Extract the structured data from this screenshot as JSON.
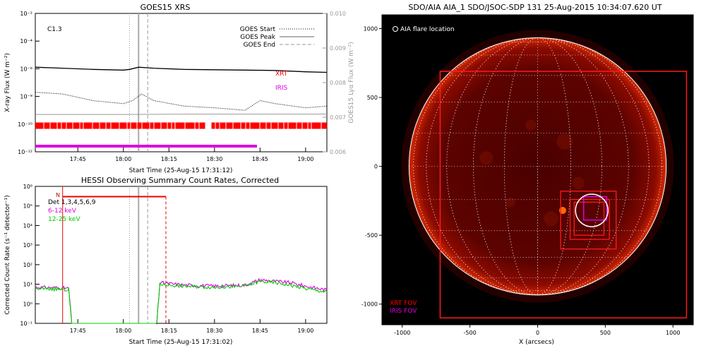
{
  "panels": {
    "goes": {
      "title": "GOES15 XRS",
      "class_label": "C1.3",
      "xlabel": "Start Time (25-Aug-15 17:31:12)",
      "ylabel": "X-ray Flux (W m⁻²)",
      "y2label": "GOES15 Lyα Flux (W m⁻²)",
      "yticks": [
        "10⁻²",
        "10⁻⁴",
        "10⁻⁶",
        "10⁻⁸",
        "10⁻¹⁰",
        "10⁻¹²"
      ],
      "y2ticks": [
        "0.010",
        "0.009",
        "0.008",
        "0.007",
        "0.006"
      ],
      "xticks": [
        "17:45",
        "18:00",
        "18:15",
        "18:30",
        "18:45",
        "19:00"
      ],
      "legend": [
        "GOES Start",
        "GOES Peak",
        "GOES End"
      ],
      "bar_labels": {
        "xrt": "XRT",
        "iris": "IRIS"
      }
    },
    "hessi": {
      "title": "HESSI Observing Summary Count Rates, Corrected",
      "xlabel": "Start Time (25-Aug-15 17:31:02)",
      "ylabel": "Corrected Count Rate (s⁻¹ detector⁻¹)",
      "yticks": [
        "10⁶",
        "10⁵",
        "10⁴",
        "10³",
        "10²",
        "10¹",
        "10⁰",
        "10⁻¹"
      ],
      "xticks": [
        "17:45",
        "18:00",
        "18:15",
        "18:30",
        "18:45",
        "19:00"
      ],
      "flag_label": "N",
      "legend": {
        "det": "Det 1,3,4,5,6,9",
        "low": "6-12 keV",
        "high": "12-25 keV"
      }
    },
    "aia": {
      "title": "SDO/AIA AIA_1 SDO/JSOC-SDP 131 25-Aug-2015 10:34:07.620 UT",
      "flare_label": "AIA flare location",
      "xlabel": "X (arcsecs)",
      "ticks": [
        "-1000",
        "-500",
        "0",
        "500",
        "1000"
      ],
      "fov_labels": {
        "xrt": "XRT FOV",
        "iris": "IRIS FOV"
      }
    }
  },
  "chart_data": [
    {
      "type": "line",
      "title": "GOES15 XRS",
      "xlabel": "Start Time (25-Aug-15 17:31:12)",
      "ylabel": "X-ray Flux (W m-2)",
      "y2label": "GOES15 Lyα Flux (W m-2)",
      "x_range": [
        "17:31",
        "19:07"
      ],
      "ylim": [
        1e-12,
        0.01
      ],
      "y2lim": [
        0.006,
        0.01
      ],
      "yscale": "log",
      "markers": {
        "start": "18:02",
        "peak": "18:05",
        "end": "18:08"
      },
      "series": [
        {
          "name": "",
          "color": "#000000",
          "x": [
            "17:31",
            "17:40",
            "17:50",
            "18:00",
            "18:02",
            "18:05",
            "18:10",
            "18:20",
            "18:30",
            "18:40",
            "18:50",
            "19:00",
            "19:07"
          ],
          "y": [
            1.3e-06,
            1.1e-06,
            9e-07,
            8e-07,
            9e-07,
            1.3e-06,
            1.1e-06,
            9e-07,
            8.5e-07,
            8e-07,
            7.5e-07,
            6e-07,
            5.5e-07
          ]
        },
        {
          "name": "",
          "color": "#000000",
          "style": "dotted",
          "x": [
            "17:31",
            "17:40",
            "17:50",
            "18:00",
            "18:03",
            "18:06",
            "18:10",
            "18:20",
            "18:30",
            "18:40",
            "18:45",
            "18:50",
            "19:00",
            "19:07"
          ],
          "y": [
            2e-08,
            1.5e-08,
            5e-09,
            3e-09,
            5e-09,
            1.5e-08,
            5e-09,
            2e-09,
            1.5e-09,
            1e-09,
            5e-09,
            3e-09,
            1.5e-09,
            2e-09
          ]
        },
        {
          "name": "",
          "color": "#999999",
          "x": [
            "17:31",
            "18:00",
            "18:30",
            "19:07"
          ],
          "y2": [
            0.00708,
            0.00708,
            0.00709,
            0.00709
          ]
        }
      ],
      "coverage": [
        {
          "name": "XRT",
          "color": "#ff0000",
          "segments": [
            [
              "17:31",
              "18:27"
            ],
            [
              "18:29",
              "19:07"
            ]
          ]
        },
        {
          "name": "IRIS",
          "color": "#dd00dd",
          "segments": [
            [
              "17:31",
              "18:44"
            ]
          ]
        }
      ]
    },
    {
      "type": "line",
      "title": "HESSI Observing Summary Count Rates, Corrected",
      "xlabel": "Start Time (25-Aug-15 17:31:02)",
      "ylabel": "Corrected Count Rate (s-1 detector-1)",
      "x_range": [
        "17:31",
        "19:07"
      ],
      "ylim": [
        0.1,
        1000000.0
      ],
      "yscale": "log",
      "markers": {
        "start": "18:02",
        "peak": "18:05",
        "end": "18:08",
        "flag_start": "17:40",
        "flag_end": "18:14"
      },
      "flag": {
        "label": "N",
        "value": 300000.0
      },
      "series": [
        {
          "name": "6-12 keV",
          "color": "#dd00dd",
          "x": [
            "17:31",
            "17:40",
            "17:42",
            "17:43",
            "18:11",
            "18:12",
            "18:20",
            "18:30",
            "18:40",
            "18:45",
            "18:50",
            "18:55",
            "19:00",
            "19:07"
          ],
          "y": [
            7,
            6.5,
            6,
            0.1,
            0.1,
            12,
            9,
            8,
            9,
            17,
            14,
            12,
            8,
            5
          ]
        },
        {
          "name": "12-25 keV",
          "color": "#00cc00",
          "x": [
            "17:31",
            "17:40",
            "17:42",
            "17:43",
            "18:11",
            "18:12",
            "18:20",
            "18:30",
            "18:40",
            "18:45",
            "18:50",
            "18:55",
            "19:00",
            "19:07"
          ],
          "y": [
            6,
            5.5,
            5,
            0.1,
            0.1,
            10,
            8,
            7,
            8,
            14,
            12,
            9,
            6,
            4
          ]
        }
      ]
    },
    {
      "type": "scatter",
      "title": "SDO/AIA AIA_1 SDO/JSOC-SDP 131 25-Aug-2015 10:34:07.620 UT",
      "xlabel": "X (arcsecs)",
      "xlim": [
        -1150,
        1150
      ],
      "ylim": [
        -1150,
        1100
      ],
      "solar_disk_radius": 950,
      "flare_location": {
        "x": 400,
        "y": -320
      },
      "xrt_fov": [
        {
          "x0": -720,
          "x1": 1100,
          "y0": -1100,
          "y1": 690
        },
        {
          "x0": 170,
          "x1": 580,
          "y0": -600,
          "y1": -180
        },
        {
          "x0": 240,
          "x1": 530,
          "y0": -530,
          "y1": -240
        },
        {
          "x0": 270,
          "x1": 490,
          "y0": -500,
          "y1": -260
        }
      ],
      "iris_fov": [
        {
          "x0": 340,
          "x1": 510,
          "y0": -390,
          "y1": -220
        }
      ]
    }
  ]
}
